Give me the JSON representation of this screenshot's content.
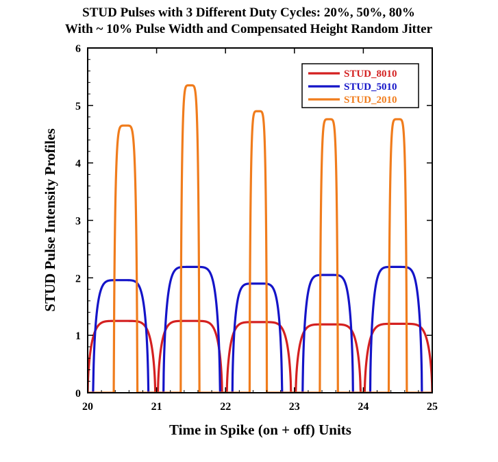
{
  "chart_data": {
    "type": "line",
    "title_line1": "STUD Pulses with 3 Different Duty Cycles: 20%, 50%, 80%",
    "title_line2": "With ~ 10% Pulse Width and Compensated Height Random Jitter",
    "xlabel": "Time in Spike (on + off) Units",
    "ylabel": "STUD Pulse Intensity Profiles",
    "xlim": [
      20,
      25
    ],
    "ylim": [
      0,
      6
    ],
    "x_ticks": [
      "20",
      "21",
      "22",
      "23",
      "24",
      "25"
    ],
    "y_ticks": [
      "0",
      "1",
      "2",
      "3",
      "4",
      "5",
      "6"
    ],
    "legend_position": "top-right",
    "series": [
      {
        "name": "STUD_8010",
        "color": "#d42020",
        "pulses": [
          {
            "start": 20.0,
            "end": 20.98,
            "height": 1.25
          },
          {
            "start": 21.02,
            "end": 21.95,
            "height": 1.25
          },
          {
            "start": 22.02,
            "end": 22.95,
            "height": 1.23
          },
          {
            "start": 23.02,
            "end": 23.96,
            "height": 1.19
          },
          {
            "start": 24.02,
            "end": 25.0,
            "height": 1.2
          }
        ]
      },
      {
        "name": "STUD_5010",
        "color": "#1414c8",
        "pulses": [
          {
            "start": 20.08,
            "end": 20.88,
            "height": 1.96
          },
          {
            "start": 21.1,
            "end": 21.92,
            "height": 2.19
          },
          {
            "start": 22.1,
            "end": 22.82,
            "height": 1.9
          },
          {
            "start": 23.12,
            "end": 23.85,
            "height": 2.05
          },
          {
            "start": 24.1,
            "end": 24.85,
            "height": 2.19
          }
        ]
      },
      {
        "name": "STUD_2010",
        "color": "#f07c1c",
        "pulses": [
          {
            "start": 20.38,
            "end": 20.72,
            "height": 4.65
          },
          {
            "start": 21.35,
            "end": 21.62,
            "height": 5.35
          },
          {
            "start": 22.35,
            "end": 22.6,
            "height": 4.9
          },
          {
            "start": 23.37,
            "end": 23.63,
            "height": 4.76
          },
          {
            "start": 24.37,
            "end": 24.63,
            "height": 4.76
          }
        ]
      }
    ]
  }
}
